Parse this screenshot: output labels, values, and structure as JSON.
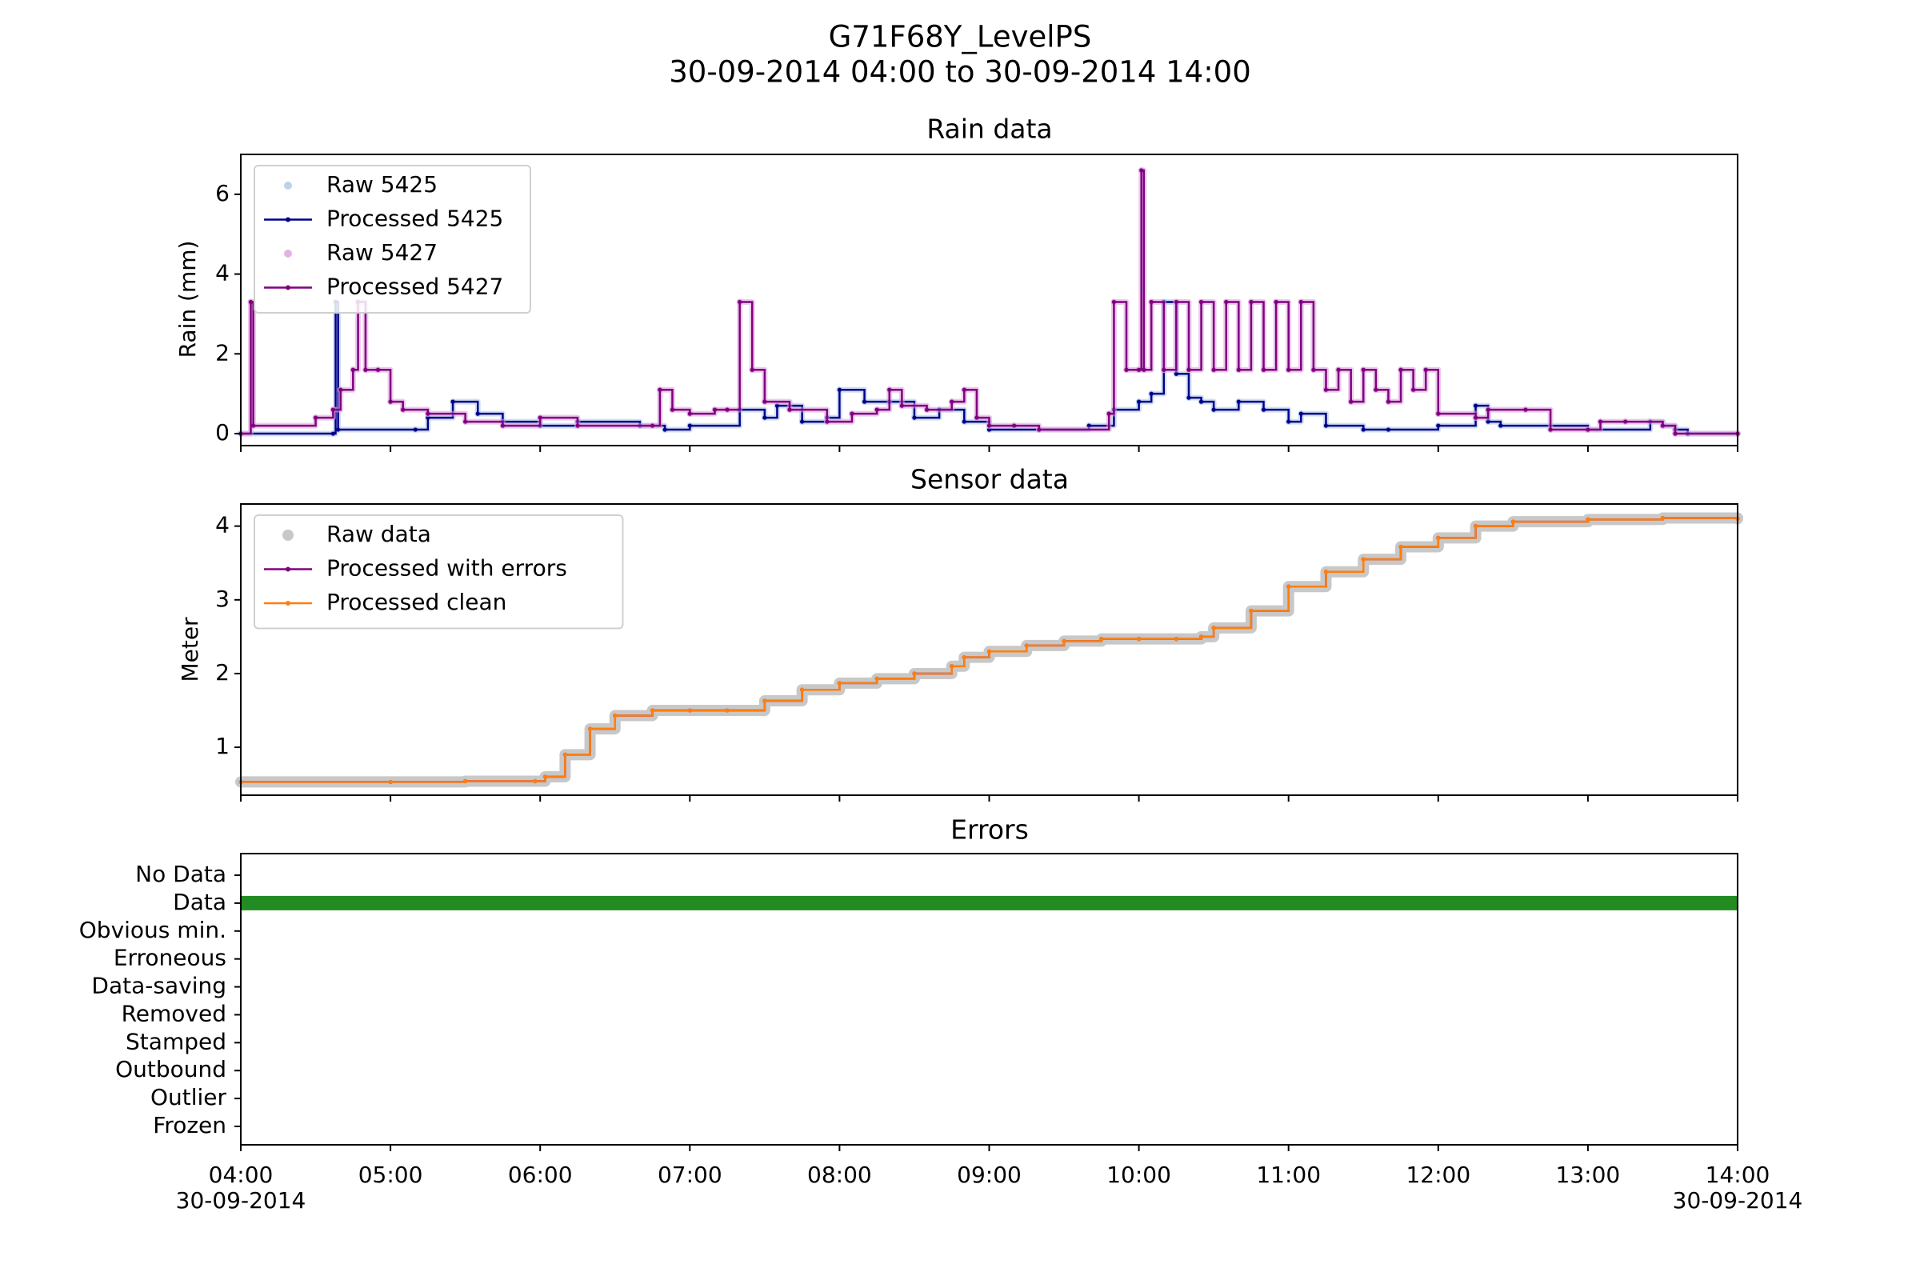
{
  "figure": {
    "title": "G71F68Y_LevelPS",
    "subtitle": "30-09-2014 04:00 to 30-09-2014 14:00"
  },
  "x_axis": {
    "range": [
      "04:00",
      "14:00"
    ],
    "tick_labels": [
      "04:00",
      "05:00",
      "06:00",
      "07:00",
      "08:00",
      "09:00",
      "10:00",
      "11:00",
      "12:00",
      "13:00",
      "14:00"
    ],
    "first_date": "30-09-2014",
    "last_date": "30-09-2014"
  },
  "colors": {
    "raw_5425": "#aec7e8",
    "processed_5425": "#00008b",
    "raw_5427": "#dda0dd",
    "processed_5427": "#800080",
    "raw_sensor": "#c8c8c8",
    "processed_errors": "#800080",
    "processed_clean": "#ff7f0e",
    "data_bar": "#228b22"
  },
  "chart_data": [
    {
      "type": "line",
      "title": "Rain data",
      "ylabel": "Rain (mm)",
      "ylim": [
        -0.3,
        7.0
      ],
      "yticks": [
        0,
        2,
        4,
        6
      ],
      "legend_position": "upper-left",
      "series": [
        {
          "name": "Raw 5425",
          "style": "raw",
          "x": [
            "04:00",
            "04:37",
            "04:38",
            "04:39",
            "05:10",
            "05:15",
            "05:25",
            "05:35",
            "05:45",
            "06:00",
            "06:15",
            "06:40",
            "06:50",
            "07:00",
            "07:20",
            "07:30",
            "07:35",
            "07:45",
            "07:55",
            "08:00",
            "08:10",
            "08:20",
            "08:30",
            "08:40",
            "08:50",
            "09:00",
            "09:20",
            "09:40",
            "09:50",
            "10:00",
            "10:05",
            "10:10",
            "10:15",
            "10:20",
            "10:25",
            "10:30",
            "10:40",
            "10:50",
            "11:00",
            "11:05",
            "11:15",
            "11:30",
            "11:40",
            "12:00",
            "12:15",
            "12:20",
            "12:25",
            "13:00",
            "13:25",
            "13:30",
            "13:35",
            "13:40",
            "14:00"
          ],
          "y": [
            0.0,
            0.0,
            3.3,
            0.1,
            0.1,
            0.4,
            0.8,
            0.5,
            0.3,
            0.2,
            0.3,
            0.2,
            0.1,
            0.2,
            0.6,
            0.4,
            0.7,
            0.3,
            0.4,
            1.1,
            0.8,
            0.8,
            0.4,
            0.6,
            0.3,
            0.1,
            0.1,
            0.2,
            0.6,
            0.8,
            1.0,
            3.3,
            1.5,
            0.9,
            0.8,
            0.6,
            0.8,
            0.6,
            0.3,
            0.5,
            0.2,
            0.1,
            0.1,
            0.2,
            0.7,
            0.3,
            0.2,
            0.1,
            0.3,
            0.2,
            0.1,
            0.0,
            0.0
          ]
        },
        {
          "name": "Processed 5425",
          "style": "processed",
          "x": [
            "04:00",
            "04:37",
            "04:38",
            "04:39",
            "05:10",
            "05:15",
            "05:25",
            "05:35",
            "05:45",
            "06:00",
            "06:15",
            "06:40",
            "06:50",
            "07:00",
            "07:20",
            "07:30",
            "07:35",
            "07:45",
            "07:55",
            "08:00",
            "08:10",
            "08:20",
            "08:30",
            "08:40",
            "08:50",
            "09:00",
            "09:20",
            "09:40",
            "09:50",
            "10:00",
            "10:05",
            "10:10",
            "10:15",
            "10:20",
            "10:25",
            "10:30",
            "10:40",
            "10:50",
            "11:00",
            "11:05",
            "11:15",
            "11:30",
            "11:40",
            "12:00",
            "12:15",
            "12:20",
            "12:25",
            "13:00",
            "13:25",
            "13:30",
            "13:35",
            "13:40",
            "14:00"
          ],
          "y": [
            0.0,
            0.0,
            3.3,
            0.1,
            0.1,
            0.4,
            0.8,
            0.5,
            0.3,
            0.2,
            0.3,
            0.2,
            0.1,
            0.2,
            0.6,
            0.4,
            0.7,
            0.3,
            0.4,
            1.1,
            0.8,
            0.8,
            0.4,
            0.6,
            0.3,
            0.1,
            0.1,
            0.2,
            0.6,
            0.8,
            1.0,
            3.3,
            1.5,
            0.9,
            0.8,
            0.6,
            0.8,
            0.6,
            0.3,
            0.5,
            0.2,
            0.1,
            0.1,
            0.2,
            0.7,
            0.3,
            0.2,
            0.1,
            0.3,
            0.2,
            0.1,
            0.0,
            0.0
          ]
        },
        {
          "name": "Raw 5427",
          "style": "raw",
          "x": [
            "04:00",
            "04:04",
            "04:05",
            "04:30",
            "04:37",
            "04:40",
            "04:45",
            "04:47",
            "04:50",
            "04:55",
            "05:00",
            "05:05",
            "05:15",
            "05:30",
            "05:45",
            "06:00",
            "06:15",
            "06:45",
            "06:48",
            "06:53",
            "07:00",
            "07:10",
            "07:15",
            "07:20",
            "07:25",
            "07:30",
            "07:40",
            "07:55",
            "08:05",
            "08:15",
            "08:20",
            "08:25",
            "08:35",
            "08:45",
            "08:50",
            "08:55",
            "09:00",
            "09:10",
            "09:20",
            "09:48",
            "09:50",
            "09:55",
            "10:00",
            "10:01",
            "10:02",
            "10:05",
            "10:10",
            "10:15",
            "10:20",
            "10:25",
            "10:30",
            "10:35",
            "10:40",
            "10:45",
            "10:50",
            "10:55",
            "11:00",
            "11:05",
            "11:10",
            "11:15",
            "11:20",
            "11:25",
            "11:30",
            "11:35",
            "11:40",
            "11:45",
            "11:50",
            "11:55",
            "12:00",
            "12:15",
            "12:20",
            "12:35",
            "12:45",
            "13:00",
            "13:05",
            "13:15",
            "13:30",
            "13:35",
            "14:00"
          ],
          "y": [
            0.0,
            3.3,
            0.2,
            0.4,
            0.6,
            1.1,
            1.6,
            3.3,
            1.6,
            1.6,
            0.8,
            0.6,
            0.5,
            0.3,
            0.2,
            0.4,
            0.2,
            0.2,
            1.1,
            0.6,
            0.5,
            0.6,
            0.6,
            3.3,
            1.6,
            0.8,
            0.6,
            0.3,
            0.5,
            0.6,
            1.1,
            0.7,
            0.6,
            0.8,
            1.1,
            0.4,
            0.2,
            0.2,
            0.1,
            0.5,
            3.3,
            1.6,
            1.6,
            6.6,
            1.6,
            3.3,
            1.6,
            3.3,
            1.6,
            3.3,
            1.6,
            3.3,
            1.6,
            3.3,
            1.6,
            3.3,
            1.6,
            3.3,
            1.6,
            1.1,
            1.6,
            0.8,
            1.6,
            1.1,
            0.8,
            1.6,
            1.1,
            1.6,
            0.5,
            0.4,
            0.6,
            0.6,
            0.1,
            0.1,
            0.3,
            0.3,
            0.2,
            0.0,
            0.0
          ]
        },
        {
          "name": "Processed 5427",
          "style": "processed",
          "x": [
            "04:00",
            "04:04",
            "04:05",
            "04:30",
            "04:37",
            "04:40",
            "04:45",
            "04:47",
            "04:50",
            "04:55",
            "05:00",
            "05:05",
            "05:15",
            "05:30",
            "05:45",
            "06:00",
            "06:15",
            "06:45",
            "06:48",
            "06:53",
            "07:00",
            "07:10",
            "07:15",
            "07:20",
            "07:25",
            "07:30",
            "07:40",
            "07:55",
            "08:05",
            "08:15",
            "08:20",
            "08:25",
            "08:35",
            "08:45",
            "08:50",
            "08:55",
            "09:00",
            "09:10",
            "09:20",
            "09:48",
            "09:50",
            "09:55",
            "10:00",
            "10:01",
            "10:02",
            "10:05",
            "10:10",
            "10:15",
            "10:20",
            "10:25",
            "10:30",
            "10:35",
            "10:40",
            "10:45",
            "10:50",
            "10:55",
            "11:00",
            "11:05",
            "11:10",
            "11:15",
            "11:20",
            "11:25",
            "11:30",
            "11:35",
            "11:40",
            "11:45",
            "11:50",
            "11:55",
            "12:00",
            "12:15",
            "12:20",
            "12:35",
            "12:45",
            "13:00",
            "13:05",
            "13:15",
            "13:30",
            "13:35",
            "14:00"
          ],
          "y": [
            0.0,
            3.3,
            0.2,
            0.4,
            0.6,
            1.1,
            1.6,
            3.3,
            1.6,
            1.6,
            0.8,
            0.6,
            0.5,
            0.3,
            0.2,
            0.4,
            0.2,
            0.2,
            1.1,
            0.6,
            0.5,
            0.6,
            0.6,
            3.3,
            1.6,
            0.8,
            0.6,
            0.3,
            0.5,
            0.6,
            1.1,
            0.7,
            0.6,
            0.8,
            1.1,
            0.4,
            0.2,
            0.2,
            0.1,
            0.5,
            3.3,
            1.6,
            1.6,
            6.6,
            1.6,
            3.3,
            1.6,
            3.3,
            1.6,
            3.3,
            1.6,
            3.3,
            1.6,
            3.3,
            1.6,
            3.3,
            1.6,
            3.3,
            1.6,
            1.1,
            1.6,
            0.8,
            1.6,
            1.1,
            0.8,
            1.6,
            1.1,
            1.6,
            0.5,
            0.4,
            0.6,
            0.6,
            0.1,
            0.1,
            0.3,
            0.3,
            0.2,
            0.0,
            0.0
          ]
        }
      ]
    },
    {
      "type": "line",
      "title": "Sensor data",
      "ylabel": "Meter",
      "ylim": [
        0.35,
        4.3
      ],
      "yticks": [
        1,
        2,
        3,
        4
      ],
      "legend_position": "upper-left",
      "series": [
        {
          "name": "Raw data",
          "style": "raw",
          "x": [
            "04:00",
            "05:00",
            "05:30",
            "05:58",
            "06:02",
            "06:10",
            "06:20",
            "06:30",
            "06:45",
            "07:00",
            "07:15",
            "07:30",
            "07:45",
            "08:00",
            "08:15",
            "08:30",
            "08:45",
            "08:50",
            "09:00",
            "09:15",
            "09:30",
            "09:45",
            "10:00",
            "10:15",
            "10:25",
            "10:30",
            "10:45",
            "11:00",
            "11:15",
            "11:30",
            "11:45",
            "12:00",
            "12:15",
            "12:30",
            "13:00",
            "13:30",
            "14:00"
          ],
          "y": [
            0.53,
            0.53,
            0.54,
            0.54,
            0.6,
            0.9,
            1.25,
            1.43,
            1.5,
            1.5,
            1.5,
            1.63,
            1.78,
            1.87,
            1.93,
            2.0,
            2.1,
            2.22,
            2.3,
            2.38,
            2.44,
            2.47,
            2.47,
            2.47,
            2.5,
            2.62,
            2.85,
            3.18,
            3.38,
            3.55,
            3.72,
            3.84,
            4.0,
            4.06,
            4.09,
            4.11,
            4.1
          ]
        },
        {
          "name": "Processed with errors",
          "style": "processed",
          "x": [
            "04:00",
            "05:00",
            "05:30",
            "05:58",
            "06:02",
            "06:10",
            "06:20",
            "06:30",
            "06:45",
            "07:00",
            "07:15",
            "07:30",
            "07:45",
            "08:00",
            "08:15",
            "08:30",
            "08:45",
            "08:50",
            "09:00",
            "09:15",
            "09:30",
            "09:45",
            "10:00",
            "10:15",
            "10:25",
            "10:30",
            "10:45",
            "11:00",
            "11:15",
            "11:30",
            "11:45",
            "12:00",
            "12:15",
            "12:30",
            "13:00",
            "13:30",
            "14:00"
          ],
          "y": [
            0.53,
            0.53,
            0.54,
            0.54,
            0.6,
            0.9,
            1.25,
            1.43,
            1.5,
            1.5,
            1.5,
            1.63,
            1.78,
            1.87,
            1.93,
            2.0,
            2.1,
            2.22,
            2.3,
            2.38,
            2.44,
            2.47,
            2.47,
            2.47,
            2.5,
            2.62,
            2.85,
            3.18,
            3.38,
            3.55,
            3.72,
            3.84,
            4.0,
            4.06,
            4.09,
            4.11,
            4.1
          ]
        },
        {
          "name": "Processed clean",
          "style": "processed",
          "x": [
            "04:00",
            "05:00",
            "05:30",
            "05:58",
            "06:02",
            "06:10",
            "06:20",
            "06:30",
            "06:45",
            "07:00",
            "07:15",
            "07:30",
            "07:45",
            "08:00",
            "08:15",
            "08:30",
            "08:45",
            "08:50",
            "09:00",
            "09:15",
            "09:30",
            "09:45",
            "10:00",
            "10:15",
            "10:25",
            "10:30",
            "10:45",
            "11:00",
            "11:15",
            "11:30",
            "11:45",
            "12:00",
            "12:15",
            "12:30",
            "13:00",
            "13:30",
            "14:00"
          ],
          "y": [
            0.53,
            0.53,
            0.54,
            0.54,
            0.6,
            0.9,
            1.25,
            1.43,
            1.5,
            1.5,
            1.5,
            1.63,
            1.78,
            1.87,
            1.93,
            2.0,
            2.1,
            2.22,
            2.3,
            2.38,
            2.44,
            2.47,
            2.47,
            2.47,
            2.5,
            2.62,
            2.85,
            3.18,
            3.38,
            3.55,
            3.72,
            3.84,
            4.0,
            4.06,
            4.09,
            4.11,
            4.1
          ]
        }
      ]
    },
    {
      "type": "bar",
      "title": "Errors",
      "categories": [
        "No Data",
        "Data",
        "Obvious min.",
        "Erroneous",
        "Data-saving",
        "Removed",
        "Stamped",
        "Outbound",
        "Outlier",
        "Frozen"
      ],
      "intervals": [
        {
          "category": "Data",
          "start": "04:00",
          "end": "14:00"
        }
      ]
    }
  ]
}
